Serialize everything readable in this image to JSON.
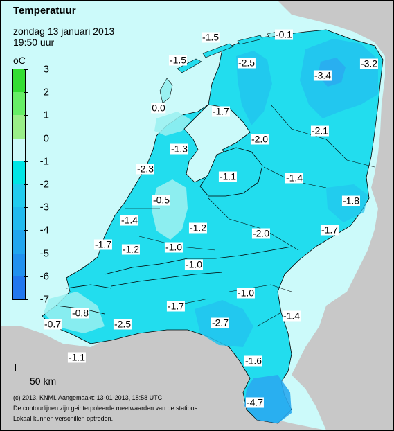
{
  "header": {
    "title": "Temperatuur",
    "date": "zondag 13 januari 2013",
    "time": "19:50 uur"
  },
  "legend": {
    "unit": "oC",
    "ticks": [
      "3",
      "2",
      "1",
      "0",
      "-1",
      "-2",
      "-3",
      "-4",
      "-5",
      "-6",
      "-7"
    ],
    "colors": [
      "#33dd33",
      "#66ee66",
      "#99ee88",
      "#ccfafa",
      "#00e5e5",
      "#22ccee",
      "#22bbee",
      "#22a6ee",
      "#2291ee",
      "#2277ee"
    ]
  },
  "colors": {
    "sea": "#ccfafa",
    "land_main": "#22ddee",
    "land_cold": "#22c4ee",
    "land_colder": "#2aaaf0",
    "land_mild": "#99f0f0",
    "foreign": "#c8c8c8"
  },
  "labels": [
    {
      "text": "-1.5"
    },
    {
      "text": "-0.1"
    },
    {
      "text": "-1.5"
    },
    {
      "text": "-2.5"
    },
    {
      "text": "-3.4"
    },
    {
      "text": "-3.2"
    },
    {
      "text": "0.0"
    },
    {
      "text": "-1.7"
    },
    {
      "text": "-2.0"
    },
    {
      "text": "-2.1"
    },
    {
      "text": "-1.3"
    },
    {
      "text": "-2.3"
    },
    {
      "text": "-1.1"
    },
    {
      "text": "-1.4"
    },
    {
      "text": "-0.5"
    },
    {
      "text": "-1.8"
    },
    {
      "text": "-1.4"
    },
    {
      "text": "-1.2"
    },
    {
      "text": "-2.0"
    },
    {
      "text": "-1.7"
    },
    {
      "text": "-1.7"
    },
    {
      "text": "-1.2"
    },
    {
      "text": "-1.0"
    },
    {
      "text": "-1.0"
    },
    {
      "text": "-1.0"
    },
    {
      "text": "-0.8"
    },
    {
      "text": "-1.7"
    },
    {
      "text": "-1.4"
    },
    {
      "text": "-0.7"
    },
    {
      "text": "-2.5"
    },
    {
      "text": "-2.7"
    },
    {
      "text": "-1.1"
    },
    {
      "text": "-1.6"
    },
    {
      "text": "-4.7"
    }
  ],
  "scale": {
    "label": "50 km"
  },
  "footer": {
    "line1": "(c) 2013, KNMI. Aangemaakt: 13-01-2013, 18:58 UTC",
    "line2": "De contourlijnen zijn geinterpoleerde meetwaarden van de stations.",
    "line3": "Lokaal kunnen verschillen optreden."
  }
}
